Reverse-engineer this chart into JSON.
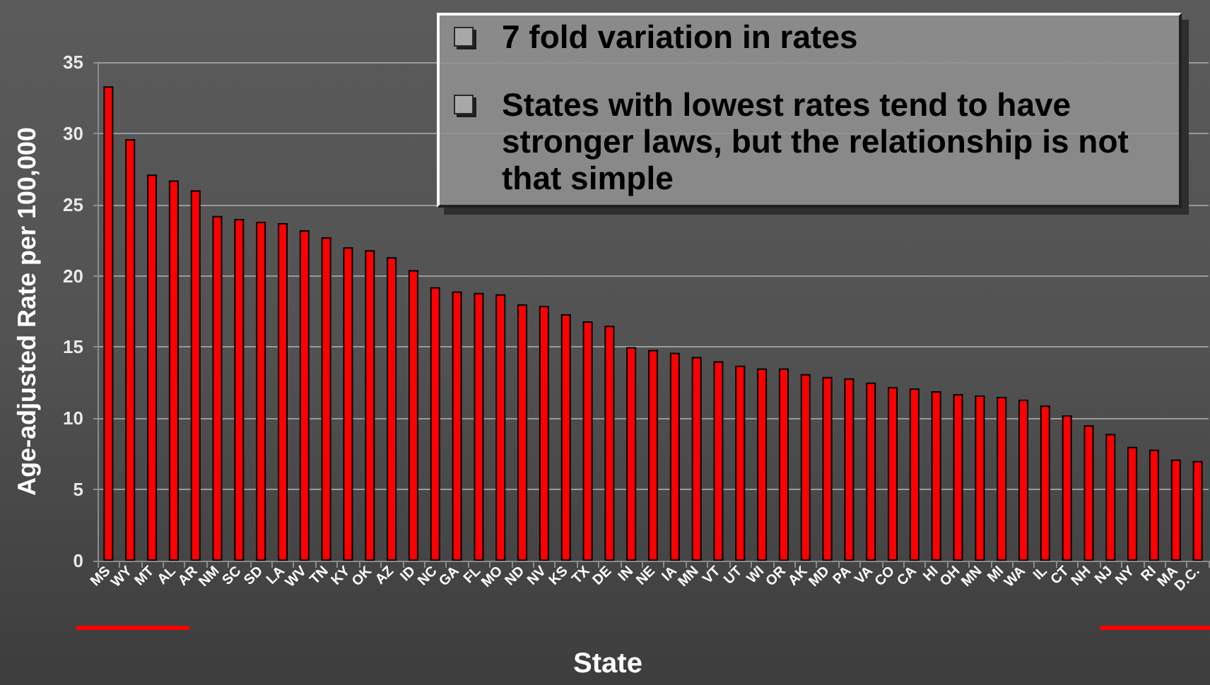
{
  "chart_data": {
    "type": "bar",
    "ylabel": "Age-adjusted Rate per 100,000",
    "xlabel": "State",
    "categories": [
      "MS",
      "WY",
      "MT",
      "AL",
      "AR",
      "NM",
      "SC",
      "SD",
      "LA",
      "WV",
      "TN",
      "KY",
      "OK",
      "AZ",
      "ID",
      "NC",
      "GA",
      "FL",
      "MO",
      "ND",
      "NV",
      "KS",
      "TX",
      "DE",
      "IN",
      "NE",
      "IA",
      "MN",
      "VT",
      "UT",
      "WI",
      "OR",
      "AK",
      "MD",
      "PA",
      "VA",
      "CO",
      "CA",
      "HI",
      "OH",
      "MN",
      "MI",
      "WA",
      "IL",
      "CT",
      "NH",
      "NJ",
      "NY",
      "RI",
      "MA",
      "D.C."
    ],
    "values": [
      33.3,
      29.6,
      27.1,
      26.7,
      26.0,
      24.2,
      24.0,
      23.8,
      23.7,
      23.2,
      22.7,
      22.0,
      21.8,
      21.3,
      20.4,
      19.2,
      18.9,
      18.8,
      18.7,
      18.0,
      17.9,
      17.3,
      16.8,
      16.5,
      15.0,
      14.8,
      14.6,
      14.3,
      14.0,
      13.7,
      13.5,
      13.5,
      13.1,
      12.9,
      12.8,
      12.5,
      12.2,
      12.1,
      11.9,
      11.7,
      11.6,
      11.5,
      11.3,
      10.9,
      10.2,
      9.5,
      8.9,
      8.0,
      7.8,
      7.1,
      7.0
    ],
    "color": "#ff0000",
    "ylim": [
      0,
      35
    ],
    "yticks": [
      0,
      5,
      10,
      15,
      20,
      25,
      30,
      35
    ],
    "grid": "y",
    "annotations": [
      "7 fold variation in rates",
      "States with lowest rates tend to have stronger laws, but the relationship is not that simple"
    ]
  }
}
